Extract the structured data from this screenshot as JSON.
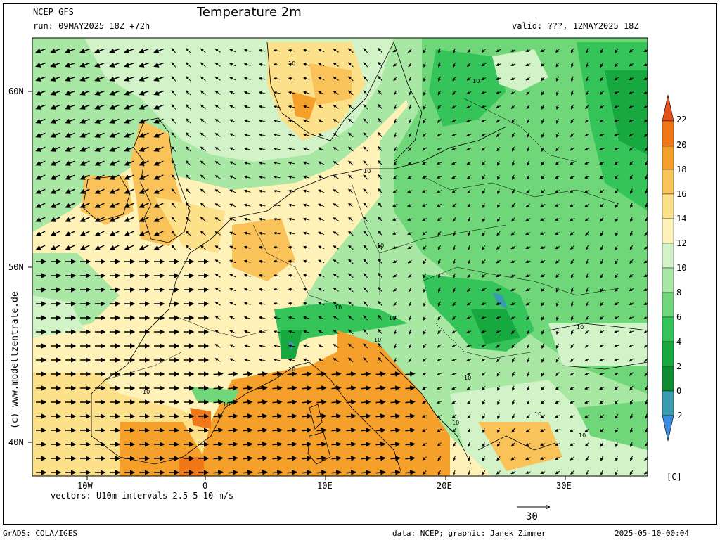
{
  "header": {
    "model": "NCEP GFS",
    "run": "run: 09MAY2025 18Z +72h",
    "title": "Temperature 2m",
    "valid": "valid: ???, 12MAY2025 18Z"
  },
  "axes": {
    "lat_labels": [
      "60N",
      "50N",
      "40N"
    ],
    "lon_labels": [
      "10W",
      "0",
      "10E",
      "20E",
      "30E"
    ]
  },
  "colorbar": {
    "ticks": [
      "22",
      "20",
      "18",
      "16",
      "14",
      "12",
      "10",
      "8",
      "6",
      "4",
      "2",
      "0",
      "-2"
    ],
    "unit": "[C]",
    "colors": {
      "above22": "#e8501c",
      "20_22": "#f07818",
      "18_20": "#f5a02a",
      "16_18": "#f9c35a",
      "14_16": "#fde08a",
      "12_14": "#fff2b8",
      "10_12": "#d2f2c8",
      "8_10": "#a8e7a4",
      "6_8": "#6fd77a",
      "4_6": "#34c45a",
      "2_4": "#18a840",
      "0_2": "#0f8c30",
      "m2_0": "#3a9ab0",
      "below_m2": "#3a8ee0"
    }
  },
  "contour_labels": [
    "10"
  ],
  "footer": {
    "vectors": "vectors: U10m intervals 2.5 5 10 m/s",
    "ref_vector": "30",
    "grads": "GrADS: COLA/IGES",
    "data_credit": "data: NCEP; graphic: Janek Zimmer",
    "timestamp": "2025-05-10-00:04"
  },
  "watermark": "(c) www.modellzentrale.de"
}
